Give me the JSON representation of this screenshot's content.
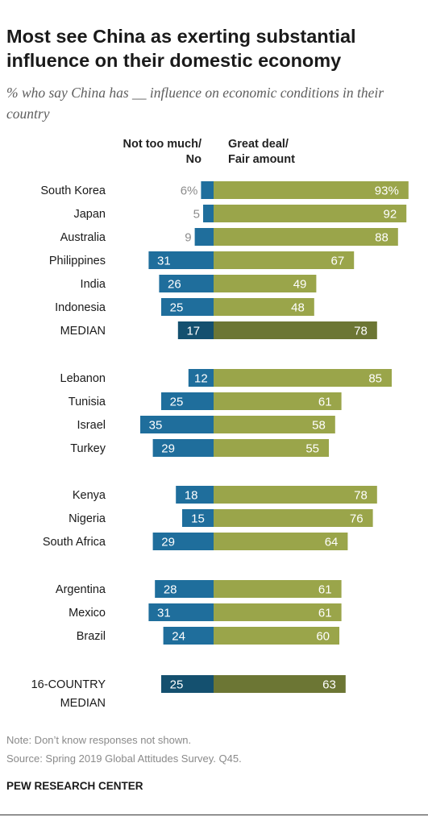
{
  "title": "Most see China as exerting substantial influence on their domestic economy",
  "subtitle": "% who say China has __ influence on economic conditions in their country",
  "headers": {
    "left_line1": "Not too much/",
    "left_line2": "No",
    "right_line1": "Great deal/",
    "right_line2": "Fair amount"
  },
  "colors": {
    "negative": "#1f6e9c",
    "positive": "#9aa54a",
    "median_negative": "#14506f",
    "median_positive": "#6c7634",
    "outside_label": "#8c8c8c"
  },
  "chart_data": {
    "type": "bar",
    "orientation": "horizontal-diverging",
    "series": [
      {
        "name": "Not too much/ No"
      },
      {
        "name": "Great deal/ Fair amount"
      }
    ],
    "rows": [
      {
        "label": "South Korea",
        "neg": 6,
        "pos": 93,
        "neg_label": "6%",
        "pos_label": "93%"
      },
      {
        "label": "Japan",
        "neg": 5,
        "pos": 92,
        "neg_label": "5",
        "pos_label": "92"
      },
      {
        "label": "Australia",
        "neg": 9,
        "pos": 88,
        "neg_label": "9",
        "pos_label": "88"
      },
      {
        "label": "Philippines",
        "neg": 31,
        "pos": 67,
        "neg_label": "31",
        "pos_label": "67"
      },
      {
        "label": "India",
        "neg": 26,
        "pos": 49,
        "neg_label": "26",
        "pos_label": "49"
      },
      {
        "label": "Indonesia",
        "neg": 25,
        "pos": 48,
        "neg_label": "25",
        "pos_label": "48"
      },
      {
        "label": "MEDIAN",
        "neg": 17,
        "pos": 78,
        "neg_label": "17",
        "pos_label": "78",
        "median": true
      },
      {
        "label": "Lebanon",
        "neg": 12,
        "pos": 85,
        "neg_label": "12",
        "pos_label": "85"
      },
      {
        "label": "Tunisia",
        "neg": 25,
        "pos": 61,
        "neg_label": "25",
        "pos_label": "61"
      },
      {
        "label": "Israel",
        "neg": 35,
        "pos": 58,
        "neg_label": "35",
        "pos_label": "58"
      },
      {
        "label": "Turkey",
        "neg": 29,
        "pos": 55,
        "neg_label": "29",
        "pos_label": "55"
      },
      {
        "label": "Kenya",
        "neg": 18,
        "pos": 78,
        "neg_label": "18",
        "pos_label": "78"
      },
      {
        "label": "Nigeria",
        "neg": 15,
        "pos": 76,
        "neg_label": "15",
        "pos_label": "76"
      },
      {
        "label": "South Africa",
        "neg": 29,
        "pos": 64,
        "neg_label": "29",
        "pos_label": "64"
      },
      {
        "label": "Argentina",
        "neg": 28,
        "pos": 61,
        "neg_label": "28",
        "pos_label": "61"
      },
      {
        "label": "Mexico",
        "neg": 31,
        "pos": 61,
        "neg_label": "31",
        "pos_label": "61"
      },
      {
        "label": "Brazil",
        "neg": 24,
        "pos": 60,
        "neg_label": "24",
        "pos_label": "60"
      },
      {
        "label": "16-COUNTRY MEDIAN",
        "label_lines": [
          "16-COUNTRY",
          "MEDIAN"
        ],
        "neg": 25,
        "pos": 63,
        "neg_label": "25",
        "pos_label": "63",
        "median": true
      }
    ]
  },
  "footer": {
    "note": "Note: Don’t know responses not shown.",
    "source": "Source: Spring 2019 Global Attitudes Survey. Q45.",
    "brand": "PEW RESEARCH CENTER"
  }
}
